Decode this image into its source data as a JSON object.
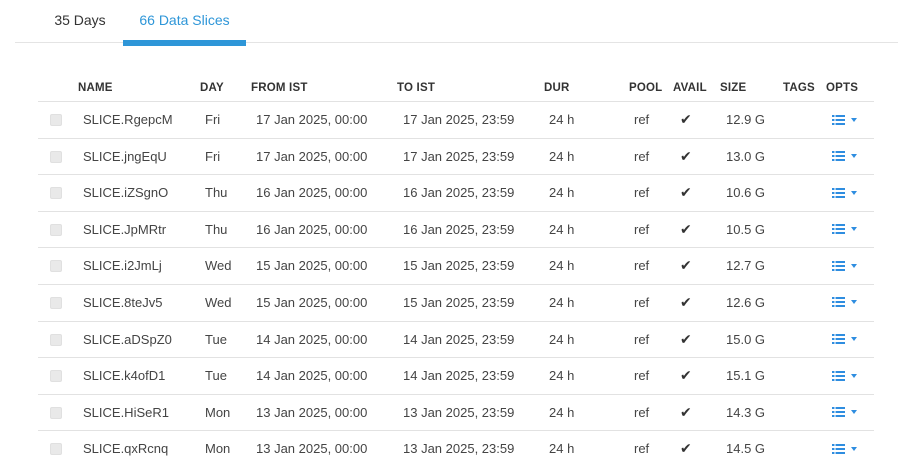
{
  "tabs": [
    {
      "label": "35 Days",
      "active": false
    },
    {
      "label": "66 Data Slices",
      "active": true
    }
  ],
  "accent_color": "#2e96d8",
  "table": {
    "headers": {
      "name": "NAME",
      "day": "DAY",
      "from": "FROM IST",
      "to": "TO IST",
      "dur": "DUR",
      "pool": "POOL",
      "avail": "AVAIL",
      "size": "SIZE",
      "tags": "TAGS",
      "opts": "OPTS"
    },
    "rows": [
      {
        "name": "SLICE.RgepcM",
        "day": "Fri",
        "from": "17 Jan 2025, 00:00",
        "to": "17 Jan 2025, 23:59",
        "dur": "24 h",
        "pool": "ref",
        "avail": "✔",
        "size": "12.9 G"
      },
      {
        "name": "SLICE.jngEqU",
        "day": "Fri",
        "from": "17 Jan 2025, 00:00",
        "to": "17 Jan 2025, 23:59",
        "dur": "24 h",
        "pool": "ref",
        "avail": "✔",
        "size": "13.0 G"
      },
      {
        "name": "SLICE.iZSgnO",
        "day": "Thu",
        "from": "16 Jan 2025, 00:00",
        "to": "16 Jan 2025, 23:59",
        "dur": "24 h",
        "pool": "ref",
        "avail": "✔",
        "size": "10.6 G"
      },
      {
        "name": "SLICE.JpMRtr",
        "day": "Thu",
        "from": "16 Jan 2025, 00:00",
        "to": "16 Jan 2025, 23:59",
        "dur": "24 h",
        "pool": "ref",
        "avail": "✔",
        "size": "10.5 G"
      },
      {
        "name": "SLICE.i2JmLj",
        "day": "Wed",
        "from": "15 Jan 2025, 00:00",
        "to": "15 Jan 2025, 23:59",
        "dur": "24 h",
        "pool": "ref",
        "avail": "✔",
        "size": "12.7 G"
      },
      {
        "name": "SLICE.8teJv5",
        "day": "Wed",
        "from": "15 Jan 2025, 00:00",
        "to": "15 Jan 2025, 23:59",
        "dur": "24 h",
        "pool": "ref",
        "avail": "✔",
        "size": "12.6 G"
      },
      {
        "name": "SLICE.aDSpZ0",
        "day": "Tue",
        "from": "14 Jan 2025, 00:00",
        "to": "14 Jan 2025, 23:59",
        "dur": "24 h",
        "pool": "ref",
        "avail": "✔",
        "size": "15.0 G"
      },
      {
        "name": "SLICE.k4ofD1",
        "day": "Tue",
        "from": "14 Jan 2025, 00:00",
        "to": "14 Jan 2025, 23:59",
        "dur": "24 h",
        "pool": "ref",
        "avail": "✔",
        "size": "15.1 G"
      },
      {
        "name": "SLICE.HiSeR1",
        "day": "Mon",
        "from": "13 Jan 2025, 00:00",
        "to": "13 Jan 2025, 23:59",
        "dur": "24 h",
        "pool": "ref",
        "avail": "✔",
        "size": "14.3 G"
      },
      {
        "name": "SLICE.qxRcnq",
        "day": "Mon",
        "from": "13 Jan 2025, 00:00",
        "to": "13 Jan 2025, 23:59",
        "dur": "24 h",
        "pool": "ref",
        "avail": "✔",
        "size": "14.5 G"
      }
    ],
    "row_icons": {
      "avail": "check-icon",
      "options": "list-icon",
      "options_menu": "caret-down-icon"
    }
  }
}
